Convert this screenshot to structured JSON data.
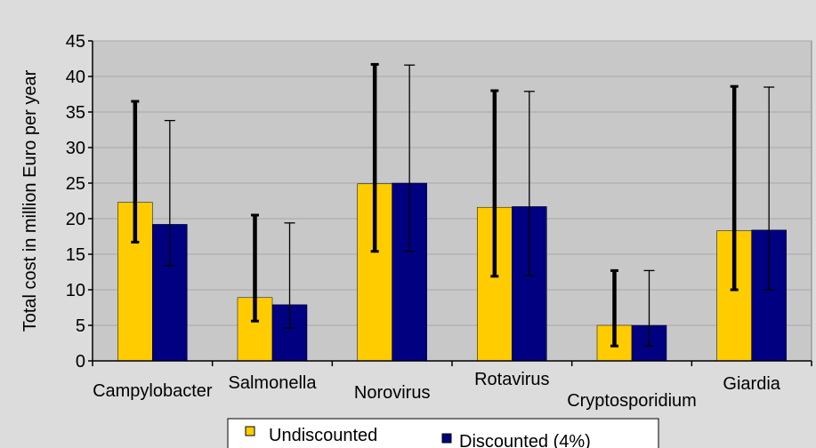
{
  "colors": {
    "background": "#dcdcdc",
    "plot_area": "#c8c8c8",
    "gridline": "#a9a9a9",
    "undiscounted": "#ffcc00",
    "discounted": "#000080",
    "axis": "#000000"
  },
  "chart_data": {
    "type": "bar",
    "title": "",
    "xlabel": "",
    "ylabel": "Total cost in million Euro per year",
    "ylim": [
      0,
      45
    ],
    "yticks": [
      0,
      5,
      10,
      15,
      20,
      25,
      30,
      35,
      40,
      45
    ],
    "grid": true,
    "legend_position": "bottom",
    "categories": [
      "Campylobacter",
      "Salmonella",
      "Norovirus",
      "Rotavirus",
      "Cryptosporidium",
      "Giardia"
    ],
    "series": [
      {
        "name": "Undiscounted",
        "values": [
          22.3,
          8.9,
          24.9,
          21.6,
          5.0,
          18.3
        ],
        "error_low": [
          16.7,
          5.6,
          15.4,
          11.9,
          2.1,
          10.0
        ],
        "error_high": [
          36.5,
          20.5,
          41.7,
          38.0,
          12.7,
          38.6
        ]
      },
      {
        "name": "Discounted (4%)",
        "values": [
          19.2,
          7.9,
          25.0,
          21.7,
          5.0,
          18.4
        ],
        "error_low": [
          13.4,
          4.6,
          15.4,
          12.0,
          2.1,
          10.0
        ],
        "error_high": [
          33.8,
          19.4,
          41.6,
          37.9,
          12.7,
          38.5
        ]
      }
    ]
  }
}
